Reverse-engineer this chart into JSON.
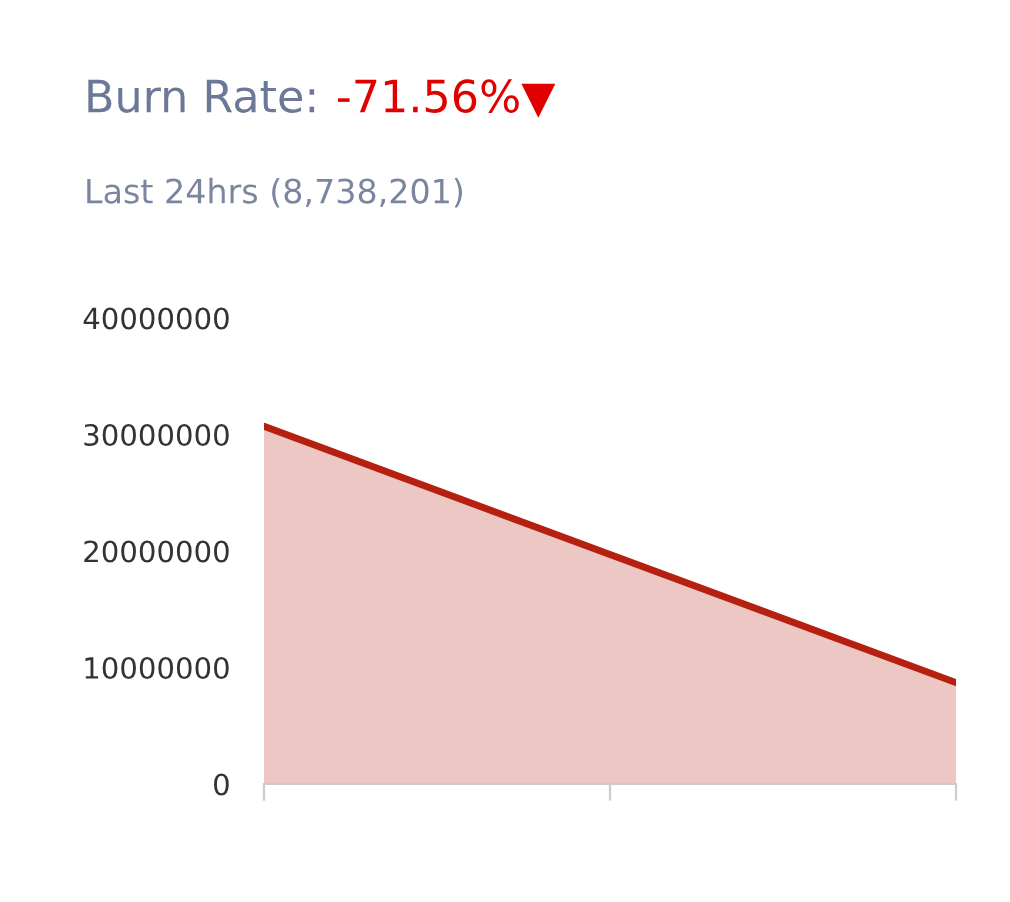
{
  "chart_data": {
    "type": "area",
    "title": "Burn Rate:",
    "subtitle": "Last 24hrs (8,738,201)",
    "annotations": [
      "-71.56%▼"
    ],
    "categories": [
      null,
      null,
      null
    ],
    "series": [
      {
        "color": "#b52010",
        "values": [
          30700000,
          19700000,
          8700000
        ]
      }
    ],
    "ylim": [
      0,
      40000000
    ],
    "yticks": [
      0,
      10000000,
      20000000,
      30000000,
      40000000
    ],
    "grid": false,
    "legend": false,
    "tick_labels": "y",
    "marker": "none",
    "line_style": "solid"
  }
}
